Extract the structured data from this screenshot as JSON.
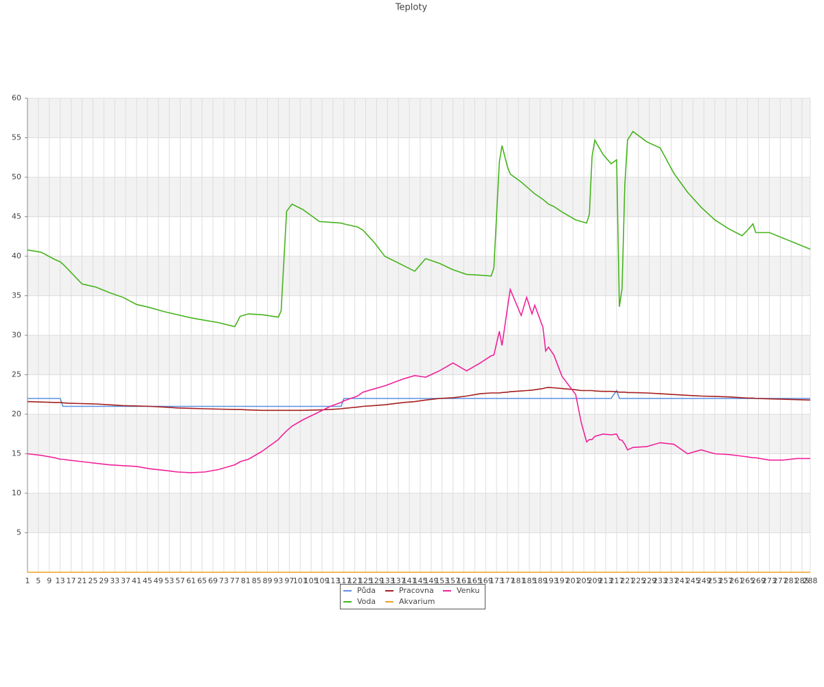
{
  "chart_data": {
    "type": "line",
    "title": "Teploty",
    "x": [
      1,
      6,
      11,
      13,
      14,
      16,
      21,
      26,
      31,
      36,
      41,
      46,
      51,
      56,
      61,
      66,
      71,
      77,
      79,
      82,
      87,
      93,
      94,
      96,
      98,
      102,
      108,
      112,
      116,
      117,
      122,
      124,
      128,
      132,
      139,
      143,
      147,
      152,
      157,
      162,
      167,
      171,
      172,
      174,
      175,
      177,
      178,
      182,
      184,
      186,
      187,
      190,
      191,
      192,
      194,
      197,
      202,
      204,
      206,
      207,
      208,
      209,
      212,
      215,
      217,
      218,
      219,
      220,
      221,
      223,
      228,
      233,
      238,
      243,
      248,
      253,
      258,
      263,
      265,
      267,
      268,
      273,
      278,
      283,
      288
    ],
    "xlim": [
      1,
      288
    ],
    "xticks": [
      1,
      5,
      9,
      13,
      17,
      21,
      25,
      29,
      33,
      37,
      41,
      45,
      49,
      53,
      57,
      61,
      65,
      69,
      73,
      77,
      81,
      85,
      89,
      93,
      97,
      101,
      105,
      109,
      113,
      117,
      121,
      125,
      129,
      133,
      137,
      141,
      145,
      149,
      153,
      157,
      161,
      165,
      169,
      173,
      177,
      181,
      185,
      189,
      193,
      197,
      201,
      205,
      209,
      213,
      217,
      221,
      225,
      229,
      233,
      237,
      241,
      245,
      249,
      253,
      257,
      261,
      265,
      269,
      273,
      277,
      281,
      285,
      288
    ],
    "ylim": [
      0,
      60
    ],
    "yticks": [
      5,
      10,
      15,
      20,
      25,
      30,
      35,
      40,
      45,
      50,
      55,
      60
    ],
    "grid": true,
    "legend": "bottom",
    "series": [
      {
        "name": "Půda",
        "color": "#5b8fe0",
        "values": [
          22,
          22,
          22,
          22,
          21,
          21,
          21,
          21,
          21,
          21,
          21,
          21,
          21,
          21,
          21,
          21,
          21,
          21,
          21,
          21,
          21,
          21,
          21,
          21,
          21,
          21,
          21,
          21,
          21,
          22,
          22,
          22,
          22,
          22,
          22,
          22,
          22,
          22,
          22,
          22,
          22,
          22,
          22,
          22,
          22,
          22,
          22,
          22,
          22,
          22,
          22,
          22,
          22,
          22,
          22,
          22,
          22,
          22,
          22,
          22,
          22,
          22,
          22,
          22,
          23,
          22,
          22,
          22,
          22,
          22,
          22,
          22,
          22,
          22,
          22,
          22,
          22,
          22,
          22,
          22,
          22,
          22,
          22,
          22,
          22
        ]
      },
      {
        "name": "Voda",
        "color": "#44b31a",
        "values": [
          40.8,
          40.5,
          39.6,
          39.3,
          39,
          38.3,
          36.5,
          36.1,
          35.4,
          34.8,
          33.9,
          33.5,
          33,
          32.6,
          32.2,
          31.9,
          31.6,
          31.1,
          32.4,
          32.7,
          32.6,
          32.3,
          33.1,
          45.7,
          46.6,
          45.9,
          44.4,
          44.3,
          44.2,
          44.1,
          43.7,
          43.3,
          41.8,
          40,
          38.8,
          38.1,
          39.7,
          39.1,
          38.3,
          37.7,
          37.6,
          37.5,
          38.5,
          51.9,
          54,
          51.3,
          50.4,
          49.4,
          48.8,
          48.2,
          47.9,
          47.2,
          46.9,
          46.6,
          46.3,
          45.6,
          44.6,
          44.4,
          44.2,
          45.3,
          52.6,
          54.7,
          52.9,
          51.7,
          52.2,
          33.6,
          35.9,
          49,
          54.7,
          55.8,
          54.5,
          53.7,
          50.5,
          48.1,
          46.2,
          44.6,
          43.5,
          42.6,
          43.3,
          44.1,
          43,
          43,
          42.3,
          41.6,
          40.9
        ]
      },
      {
        "name": "Pracovna",
        "color": "#a51c1c",
        "values": [
          21.6,
          21.55,
          21.5,
          21.5,
          21.45,
          21.4,
          21.35,
          21.3,
          21.2,
          21.1,
          21.05,
          21,
          20.9,
          20.8,
          20.75,
          20.7,
          20.65,
          20.6,
          20.6,
          20.55,
          20.5,
          20.5,
          20.5,
          20.5,
          20.5,
          20.5,
          20.55,
          20.6,
          20.7,
          20.75,
          20.9,
          21,
          21.1,
          21.2,
          21.5,
          21.6,
          21.8,
          22,
          22.1,
          22.3,
          22.6,
          22.7,
          22.7,
          22.7,
          22.75,
          22.8,
          22.85,
          22.95,
          23,
          23.05,
          23.1,
          23.25,
          23.35,
          23.4,
          23.35,
          23.25,
          23.1,
          23,
          23,
          23,
          23,
          22.95,
          22.9,
          22.9,
          22.85,
          22.8,
          22.8,
          22.8,
          22.75,
          22.75,
          22.7,
          22.6,
          22.5,
          22.4,
          22.3,
          22.25,
          22.2,
          22.1,
          22.05,
          22.05,
          22,
          21.95,
          21.9,
          21.85,
          21.8
        ]
      },
      {
        "name": "Akvarium",
        "color": "#f0a020",
        "values": [
          0,
          0,
          0,
          0,
          0,
          0,
          0,
          0,
          0,
          0,
          0,
          0,
          0,
          0,
          0,
          0,
          0,
          0,
          0,
          0,
          0,
          0,
          0,
          0,
          0,
          0,
          0,
          0,
          0,
          0,
          0,
          0,
          0,
          0,
          0,
          0,
          0,
          0,
          0,
          0,
          0,
          0,
          0,
          0,
          0,
          0,
          0,
          0,
          0,
          0,
          0,
          0,
          0,
          0,
          0,
          0,
          0,
          0,
          0,
          0,
          0,
          0,
          0,
          0,
          0,
          0,
          0,
          0,
          0,
          0,
          0,
          0,
          0,
          0,
          0,
          0,
          0,
          0,
          0,
          0,
          0,
          0,
          0,
          0,
          0
        ]
      },
      {
        "name": "Venku",
        "color": "#f0209a",
        "values": [
          15,
          14.8,
          14.5,
          14.3,
          14.3,
          14.2,
          14,
          13.8,
          13.6,
          13.5,
          13.4,
          13.1,
          12.9,
          12.7,
          12.6,
          12.7,
          13,
          13.6,
          14,
          14.3,
          15.3,
          16.8,
          17.2,
          17.9,
          18.5,
          19.3,
          20.3,
          21,
          21.5,
          21.7,
          22.3,
          22.8,
          23.2,
          23.6,
          24.5,
          24.9,
          24.7,
          25.5,
          26.5,
          25.5,
          26.5,
          27.4,
          27.5,
          30.5,
          28.7,
          33.5,
          35.8,
          32.5,
          34.8,
          32.7,
          33.8,
          31,
          28,
          28.5,
          27.5,
          24.8,
          22.5,
          19,
          16.5,
          16.8,
          16.8,
          17.2,
          17.5,
          17.4,
          17.5,
          16.8,
          16.7,
          16.2,
          15.5,
          15.8,
          15.9,
          16.4,
          16.2,
          15,
          15.5,
          15,
          14.9,
          14.7,
          14.6,
          14.5,
          14.5,
          14.2,
          14.2,
          14.4,
          14.4
        ]
      }
    ]
  }
}
